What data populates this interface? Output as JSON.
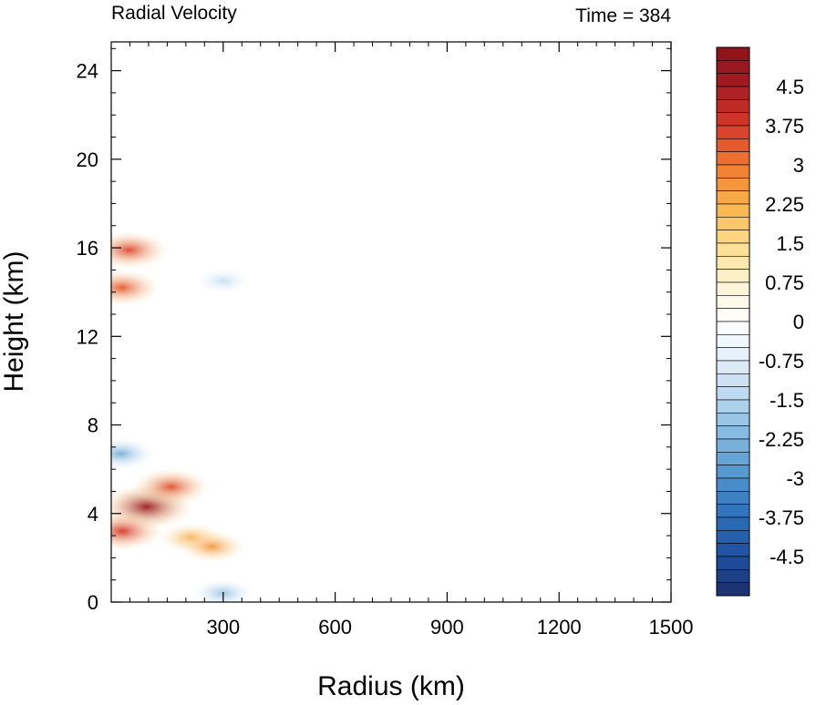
{
  "chart_data": {
    "type": "heatmap",
    "title": "Radial Velocity",
    "right_title": "Time = 384",
    "xlabel": "Radius (km)",
    "ylabel": "Height (km)",
    "xlim": [
      0,
      1500
    ],
    "ylim": [
      0,
      25.3
    ],
    "x_ticks": [
      300,
      600,
      900,
      1200,
      1500
    ],
    "y_ticks": [
      0,
      4,
      8,
      12,
      16,
      20,
      24
    ],
    "colorbar": {
      "min": -5.25,
      "max": 5.25,
      "step": 0.25,
      "labels": [
        "4.5",
        "3.75",
        "3",
        "2.25",
        "1.5",
        "0.75",
        "0",
        "-0.75",
        "-1.5",
        "-2.25",
        "-3",
        "-3.75",
        "-4.5"
      ],
      "label_values": [
        4.5,
        3.75,
        3,
        2.25,
        1.5,
        0.75,
        0,
        -0.75,
        -1.5,
        -2.25,
        -3,
        -3.75,
        -4.5
      ],
      "palette": [
        "#1b2f6b",
        "#1f4fa0",
        "#2c6fb8",
        "#4d93ce",
        "#7fb6de",
        "#b5d6ee",
        "#e2eef8",
        "#ffffff",
        "#fdf3d2",
        "#fddc8c",
        "#f9b14a",
        "#f07a30",
        "#d7392b",
        "#a51c22",
        "#8c1219"
      ]
    },
    "features": [
      {
        "label": "strong outflow",
        "r": 95,
        "z": 4.3,
        "value": 4.8
      },
      {
        "label": "outflow",
        "r": 30,
        "z": 3.2,
        "value": 3.8
      },
      {
        "label": "outflow",
        "r": 160,
        "z": 5.2,
        "value": 3.5
      },
      {
        "label": "outflow",
        "r": 215,
        "z": 2.9,
        "value": 2.3
      },
      {
        "label": "outflow",
        "r": 270,
        "z": 2.5,
        "value": 2.6
      },
      {
        "label": "upper outflow",
        "r": 28,
        "z": 14.2,
        "value": 3.4
      },
      {
        "label": "upper outflow",
        "r": 48,
        "z": 15.9,
        "value": 3.6
      },
      {
        "label": "inflow",
        "r": 25,
        "z": 6.7,
        "value": -2.4
      },
      {
        "label": "boundary-layer inflow",
        "r": 300,
        "z": 0.4,
        "value": -1.9
      },
      {
        "label": "upper inflow",
        "r": 300,
        "z": 14.5,
        "value": -1.2
      }
    ]
  }
}
